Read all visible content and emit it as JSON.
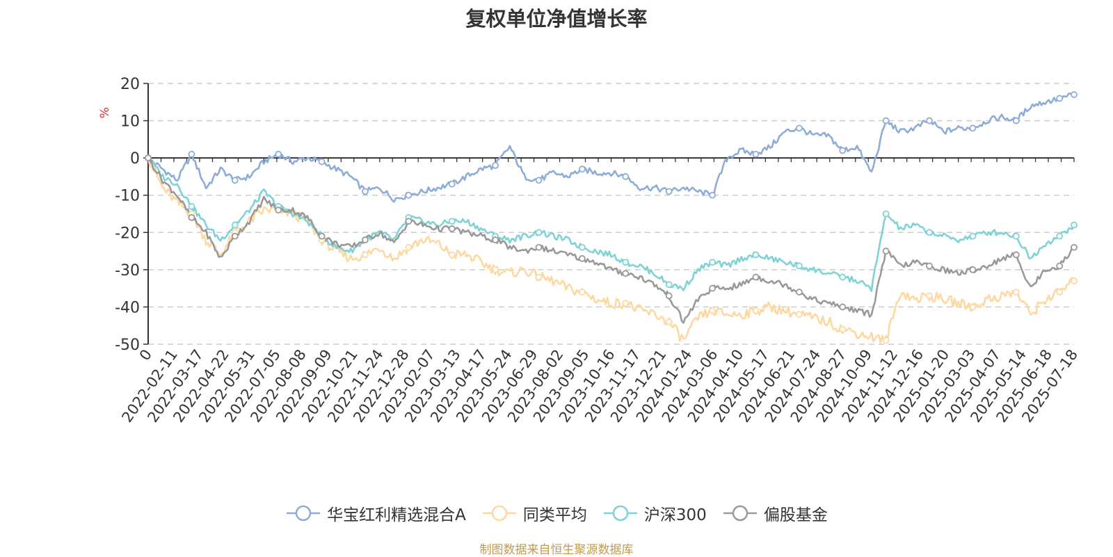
{
  "title": "复权单位净值增长率",
  "source": "制图数据来自恒生聚源数据库",
  "chart_data": {
    "type": "line",
    "title": "复权单位净值增长率",
    "ylabel": "%",
    "ylim": [
      -50,
      20
    ],
    "yticks": [
      20,
      10,
      0,
      -10,
      -20,
      -30,
      -40,
      -50
    ],
    "grid": true,
    "legend_position": "bottom",
    "x_ticks": [
      "0",
      "2022-02-11",
      "2022-03-17",
      "2022-04-22",
      "2022-05-31",
      "2022-07-05",
      "2022-08-08",
      "2022-09-09",
      "2022-10-21",
      "2022-11-24",
      "2022-12-28",
      "2023-02-07",
      "2023-03-13",
      "2023-04-17",
      "2023-05-24",
      "2023-06-29",
      "2023-08-02",
      "2023-09-05",
      "2023-10-16",
      "2023-11-17",
      "2023-12-21",
      "2024-01-24",
      "2024-03-06",
      "2024-04-10",
      "2024-05-17",
      "2024-06-21",
      "2024-07-24",
      "2024-08-27",
      "2024-10-09",
      "2024-11-12",
      "2024-12-16",
      "2025-01-20",
      "2025-03-03",
      "2025-04-07",
      "2025-05-14",
      "2025-06-18",
      "2025-07-18"
    ],
    "series": [
      {
        "name": "华宝红利精选混合A",
        "color": "#8eacd8",
        "values": [
          0,
          -3,
          -6,
          1,
          -8,
          -3,
          -6,
          -5,
          -1,
          1,
          -1,
          0,
          -1,
          -3,
          -5,
          -9,
          -8,
          -11,
          -10,
          -9,
          -8,
          -7,
          -5,
          -3,
          -2,
          3,
          -5,
          -6,
          -4,
          -5,
          -3,
          -4,
          -4,
          -5,
          -8,
          -8,
          -9,
          -8,
          -9,
          -10,
          0,
          2,
          1,
          3,
          7,
          8,
          6,
          6,
          2,
          3,
          -4,
          10,
          7,
          8,
          10,
          7,
          8,
          8,
          10,
          11,
          10,
          14,
          15,
          16,
          17
        ]
      },
      {
        "name": "同类平均",
        "color": "#fdd8a0",
        "values": [
          0,
          -8,
          -12,
          -15,
          -22,
          -26,
          -20,
          -17,
          -14,
          -14,
          -15,
          -17,
          -22,
          -25,
          -27,
          -26,
          -24,
          -27,
          -24,
          -22,
          -23,
          -26,
          -26,
          -28,
          -30,
          -31,
          -30,
          -32,
          -33,
          -35,
          -36,
          -38,
          -39,
          -39,
          -41,
          -42,
          -44,
          -49,
          -43,
          -41,
          -42,
          -42,
          -41,
          -40,
          -41,
          -42,
          -43,
          -44,
          -46,
          -47,
          -48,
          -49,
          -36,
          -38,
          -37,
          -38,
          -39,
          -40,
          -38,
          -37,
          -36,
          -42,
          -38,
          -36,
          -33
        ]
      },
      {
        "name": "沪深300",
        "color": "#7fd2d6",
        "values": [
          0,
          -5,
          -7,
          -13,
          -18,
          -22,
          -18,
          -14,
          -9,
          -13,
          -15,
          -17,
          -21,
          -24,
          -25,
          -22,
          -20,
          -22,
          -16,
          -17,
          -18,
          -17,
          -17,
          -19,
          -21,
          -22,
          -21,
          -20,
          -21,
          -22,
          -24,
          -25,
          -26,
          -28,
          -29,
          -31,
          -34,
          -35,
          -30,
          -28,
          -29,
          -27,
          -26,
          -27,
          -28,
          -29,
          -30,
          -31,
          -32,
          -33,
          -35,
          -15,
          -19,
          -18,
          -20,
          -21,
          -22,
          -21,
          -20,
          -20,
          -21,
          -27,
          -23,
          -21,
          -18
        ]
      },
      {
        "name": "偏股基金",
        "color": "#999999",
        "values": [
          0,
          -6,
          -10,
          -16,
          -20,
          -27,
          -21,
          -17,
          -11,
          -14,
          -14,
          -16,
          -21,
          -23,
          -24,
          -22,
          -20,
          -23,
          -17,
          -18,
          -19,
          -19,
          -20,
          -21,
          -22,
          -24,
          -25,
          -24,
          -25,
          -26,
          -27,
          -28,
          -30,
          -31,
          -32,
          -34,
          -37,
          -44,
          -38,
          -35,
          -35,
          -34,
          -32,
          -33,
          -34,
          -36,
          -38,
          -39,
          -40,
          -41,
          -42,
          -25,
          -29,
          -28,
          -29,
          -30,
          -31,
          -30,
          -29,
          -27,
          -26,
          -35,
          -30,
          -29,
          -24
        ]
      }
    ]
  }
}
